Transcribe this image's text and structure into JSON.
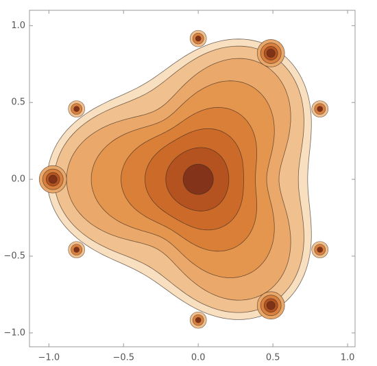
{
  "chart_data": {
    "type": "contour",
    "xlim": [
      -1.13,
      1.05
    ],
    "ylim": [
      -1.09,
      1.1
    ],
    "xticks": [
      {
        "value": -1,
        "label": "−1.0"
      },
      {
        "value": -0.5,
        "label": "−0.5"
      },
      {
        "value": 0,
        "label": "0.0"
      },
      {
        "value": 0.5,
        "label": "0.5"
      },
      {
        "value": 1,
        "label": "1.0"
      }
    ],
    "yticks": [
      {
        "value": -1,
        "label": "−1.0"
      },
      {
        "value": -0.5,
        "label": "−0.5"
      },
      {
        "value": 0,
        "label": "0.0"
      },
      {
        "value": 0.5,
        "label": "0.5"
      },
      {
        "value": 1,
        "label": "1.0"
      }
    ]
  }
}
